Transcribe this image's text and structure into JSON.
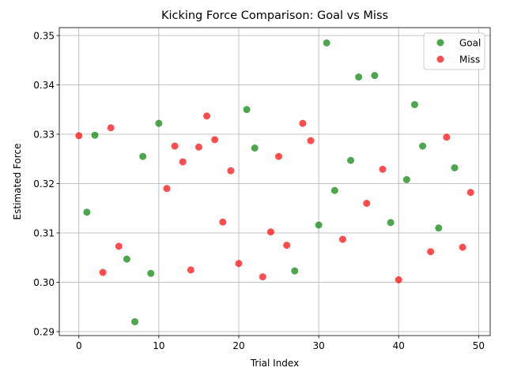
{
  "chart_data": {
    "type": "scatter",
    "title": "Kicking Force Comparison: Goal vs Miss",
    "xlabel": "Trial Index",
    "ylabel": "Estimated Force",
    "xlim": [
      -2.45,
      51.45
    ],
    "ylim": [
      0.2892,
      0.3516
    ],
    "x_ticks": [
      0,
      10,
      20,
      30,
      40,
      50
    ],
    "y_ticks": [
      0.29,
      0.3,
      0.31,
      0.32,
      0.33,
      0.34,
      0.35
    ],
    "x_tick_labels": [
      "0",
      "10",
      "20",
      "30",
      "40",
      "50"
    ],
    "y_tick_labels": [
      "0.29",
      "0.30",
      "0.31",
      "0.32",
      "0.33",
      "0.34",
      "0.35"
    ],
    "grid": true,
    "legend_position": "top-right",
    "series": [
      {
        "name": "Goal",
        "color": "#008000",
        "points": [
          {
            "x": 1,
            "y": 0.3142
          },
          {
            "x": 2,
            "y": 0.3298
          },
          {
            "x": 6,
            "y": 0.3047
          },
          {
            "x": 7,
            "y": 0.292
          },
          {
            "x": 8,
            "y": 0.3255
          },
          {
            "x": 9,
            "y": 0.3018
          },
          {
            "x": 10,
            "y": 0.3322
          },
          {
            "x": 21,
            "y": 0.335
          },
          {
            "x": 22,
            "y": 0.3272
          },
          {
            "x": 27,
            "y": 0.3023
          },
          {
            "x": 30,
            "y": 0.3116
          },
          {
            "x": 31,
            "y": 0.3485
          },
          {
            "x": 32,
            "y": 0.3186
          },
          {
            "x": 34,
            "y": 0.3247
          },
          {
            "x": 35,
            "y": 0.3416
          },
          {
            "x": 37,
            "y": 0.3419
          },
          {
            "x": 39,
            "y": 0.3121
          },
          {
            "x": 41,
            "y": 0.3208
          },
          {
            "x": 42,
            "y": 0.336
          },
          {
            "x": 43,
            "y": 0.3276
          },
          {
            "x": 45,
            "y": 0.311
          },
          {
            "x": 47,
            "y": 0.3232
          }
        ]
      },
      {
        "name": "Miss",
        "color": "#ff0000",
        "points": [
          {
            "x": 0,
            "y": 0.3297
          },
          {
            "x": 3,
            "y": 0.302
          },
          {
            "x": 4,
            "y": 0.3313
          },
          {
            "x": 5,
            "y": 0.3073
          },
          {
            "x": 11,
            "y": 0.319
          },
          {
            "x": 12,
            "y": 0.3276
          },
          {
            "x": 13,
            "y": 0.3244
          },
          {
            "x": 14,
            "y": 0.3025
          },
          {
            "x": 15,
            "y": 0.3274
          },
          {
            "x": 16,
            "y": 0.3337
          },
          {
            "x": 17,
            "y": 0.3289
          },
          {
            "x": 18,
            "y": 0.3122
          },
          {
            "x": 19,
            "y": 0.3226
          },
          {
            "x": 20,
            "y": 0.3038
          },
          {
            "x": 23,
            "y": 0.3011
          },
          {
            "x": 24,
            "y": 0.3102
          },
          {
            "x": 25,
            "y": 0.3255
          },
          {
            "x": 26,
            "y": 0.3075
          },
          {
            "x": 28,
            "y": 0.3322
          },
          {
            "x": 29,
            "y": 0.3287
          },
          {
            "x": 33,
            "y": 0.3087
          },
          {
            "x": 36,
            "y": 0.316
          },
          {
            "x": 38,
            "y": 0.3229
          },
          {
            "x": 40,
            "y": 0.3005
          },
          {
            "x": 44,
            "y": 0.3062
          },
          {
            "x": 46,
            "y": 0.3294
          },
          {
            "x": 48,
            "y": 0.3071
          },
          {
            "x": 49,
            "y": 0.3182
          }
        ]
      }
    ]
  }
}
